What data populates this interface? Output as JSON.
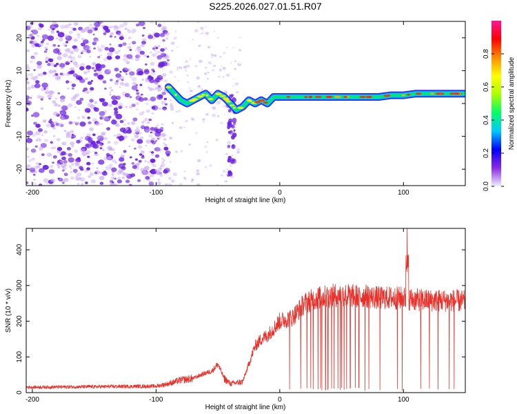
{
  "title": "S225.2026.027.01.51.R07",
  "colors": {
    "snr_line": "#e8312a",
    "track_core": "#ff2a00",
    "scatter_main": "#6a1fe0",
    "scatter_light": "#c8a6f2"
  },
  "chart_data": [
    {
      "type": "heatmap",
      "xlabel": "Height of straight line (km)",
      "ylabel": "Frequency (Hz)",
      "xlim": [
        -205,
        150
      ],
      "ylim": [
        -25,
        25
      ],
      "xticks": [
        -200,
        -100,
        0,
        100
      ],
      "yticks": [
        -20,
        -10,
        0,
        10,
        20
      ],
      "colorbar": {
        "label": "Normalized spectral amplitude",
        "range": [
          0.0,
          1.0
        ],
        "ticks": [
          "0.0",
          "0.2",
          "0.4",
          "0.6",
          "0.8"
        ],
        "colormap": [
          "#f0f0ff",
          "#8a2be2",
          "#0000ff",
          "#00c8ff",
          "#00ff66",
          "#aaff00",
          "#ffff00",
          "#ff8c00",
          "#ff0000",
          "#ff1493"
        ]
      },
      "track": [
        {
          "x": -90,
          "y": 5
        },
        {
          "x": -85,
          "y": 3
        },
        {
          "x": -80,
          "y": 1
        },
        {
          "x": -75,
          "y": 0
        },
        {
          "x": -70,
          "y": 1
        },
        {
          "x": -65,
          "y": 2
        },
        {
          "x": -60,
          "y": 3
        },
        {
          "x": -55,
          "y": 1
        },
        {
          "x": -50,
          "y": 3
        },
        {
          "x": -45,
          "y": 2
        },
        {
          "x": -40,
          "y": 0
        },
        {
          "x": -35,
          "y": -2
        },
        {
          "x": -30,
          "y": -1
        },
        {
          "x": -25,
          "y": 1
        },
        {
          "x": -20,
          "y": 0
        },
        {
          "x": -15,
          "y": 1
        },
        {
          "x": -10,
          "y": 0
        },
        {
          "x": -5,
          "y": 2
        },
        {
          "x": 0,
          "y": 2
        },
        {
          "x": 10,
          "y": 2
        },
        {
          "x": 20,
          "y": 2
        },
        {
          "x": 30,
          "y": 2
        },
        {
          "x": 40,
          "y": 2
        },
        {
          "x": 50,
          "y": 2
        },
        {
          "x": 60,
          "y": 2
        },
        {
          "x": 70,
          "y": 2
        },
        {
          "x": 80,
          "y": 2
        },
        {
          "x": 90,
          "y": 2.5
        },
        {
          "x": 100,
          "y": 2.5
        },
        {
          "x": 110,
          "y": 3
        },
        {
          "x": 120,
          "y": 3
        },
        {
          "x": 130,
          "y": 3
        },
        {
          "x": 140,
          "y": 3
        },
        {
          "x": 150,
          "y": 3
        }
      ]
    },
    {
      "type": "line",
      "xlabel": "Height of straight line (km)",
      "ylabel": "SNR (10 * v/v)",
      "xlim": [
        -205,
        150
      ],
      "ylim": [
        0,
        460
      ],
      "xticks": [
        -200,
        -100,
        0,
        100
      ],
      "yticks": [
        0,
        100,
        200,
        300,
        400
      ],
      "envelope": [
        {
          "x": -205,
          "y": 15
        },
        {
          "x": -100,
          "y": 18
        },
        {
          "x": -90,
          "y": 25
        },
        {
          "x": -80,
          "y": 35
        },
        {
          "x": -70,
          "y": 40
        },
        {
          "x": -60,
          "y": 55
        },
        {
          "x": -55,
          "y": 60
        },
        {
          "x": -50,
          "y": 80
        },
        {
          "x": -45,
          "y": 40
        },
        {
          "x": -40,
          "y": 25
        },
        {
          "x": -30,
          "y": 30
        },
        {
          "x": -25,
          "y": 80
        },
        {
          "x": -20,
          "y": 130
        },
        {
          "x": -15,
          "y": 150
        },
        {
          "x": -10,
          "y": 160
        },
        {
          "x": -5,
          "y": 180
        },
        {
          "x": 0,
          "y": 200
        },
        {
          "x": 10,
          "y": 210
        },
        {
          "x": 15,
          "y": 230
        },
        {
          "x": 20,
          "y": 250
        },
        {
          "x": 30,
          "y": 265
        },
        {
          "x": 40,
          "y": 270
        },
        {
          "x": 50,
          "y": 275
        },
        {
          "x": 60,
          "y": 270
        },
        {
          "x": 70,
          "y": 270
        },
        {
          "x": 80,
          "y": 265
        },
        {
          "x": 90,
          "y": 265
        },
        {
          "x": 100,
          "y": 265
        },
        {
          "x": 110,
          "y": 260
        },
        {
          "x": 120,
          "y": 258
        },
        {
          "x": 130,
          "y": 258
        },
        {
          "x": 140,
          "y": 258
        },
        {
          "x": 150,
          "y": 255
        }
      ],
      "spike": {
        "x": 103,
        "y": 460
      },
      "dropouts": [
        8,
        17,
        22,
        25,
        27,
        31,
        33,
        34,
        37,
        39,
        42,
        44,
        47,
        49,
        50,
        52,
        54,
        57,
        61,
        64,
        69,
        72,
        81,
        95,
        99,
        114,
        121,
        128,
        137,
        141
      ]
    }
  ]
}
